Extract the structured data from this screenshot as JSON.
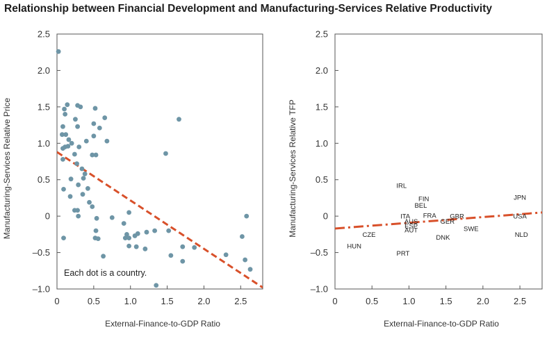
{
  "title": "Relationship between Financial Development and Manufacturing-Services Relative Productivity",
  "colors": {
    "dot": "#6e95a6",
    "trend": "#d8502a",
    "frame": "#555555"
  },
  "chart_data": [
    {
      "type": "scatter",
      "xlabel": "External-Finance-to-GDP Ratio",
      "ylabel": "Manufacturing-Services Relative Price",
      "xlim": [
        0,
        2.8
      ],
      "ylim": [
        -1.0,
        2.5
      ],
      "xticks": [
        "0",
        "0.5",
        "1.0",
        "1.5",
        "2.0",
        "2.5"
      ],
      "yticks": [
        "2.5",
        "2.0",
        "1.5",
        "1.0",
        "0.5",
        "0",
        "–0.5",
        "–1.0"
      ],
      "annotation": "Each dot is a country.",
      "trend": {
        "style": "dashed",
        "points": [
          [
            0,
            0.88
          ],
          [
            2.8,
            -0.98
          ]
        ]
      },
      "points": [
        [
          0.02,
          2.26
        ],
        [
          0.1,
          1.47
        ],
        [
          0.14,
          1.53
        ],
        [
          0.28,
          1.52
        ],
        [
          0.32,
          1.5
        ],
        [
          0.52,
          1.48
        ],
        [
          0.65,
          1.35
        ],
        [
          1.66,
          1.33
        ],
        [
          0.25,
          1.33
        ],
        [
          0.11,
          1.4
        ],
        [
          0.5,
          1.27
        ],
        [
          0.58,
          1.21
        ],
        [
          0.28,
          1.23
        ],
        [
          0.08,
          1.23
        ],
        [
          0.07,
          1.12
        ],
        [
          0.12,
          1.12
        ],
        [
          0.16,
          1.05
        ],
        [
          0.5,
          1.1
        ],
        [
          0.68,
          1.03
        ],
        [
          0.4,
          1.03
        ],
        [
          0.2,
          1.0
        ],
        [
          0.08,
          0.93
        ],
        [
          0.11,
          0.95
        ],
        [
          0.15,
          0.96
        ],
        [
          0.3,
          0.95
        ],
        [
          0.24,
          0.85
        ],
        [
          0.48,
          0.84
        ],
        [
          0.53,
          0.84
        ],
        [
          1.48,
          0.86
        ],
        [
          0.08,
          0.78
        ],
        [
          0.27,
          0.72
        ],
        [
          0.34,
          0.65
        ],
        [
          0.38,
          0.58
        ],
        [
          0.36,
          0.52
        ],
        [
          0.19,
          0.51
        ],
        [
          0.29,
          0.43
        ],
        [
          0.09,
          0.37
        ],
        [
          0.42,
          0.38
        ],
        [
          0.35,
          0.3
        ],
        [
          0.18,
          0.27
        ],
        [
          0.44,
          0.19
        ],
        [
          0.48,
          0.13
        ],
        [
          0.24,
          0.08
        ],
        [
          0.28,
          0.08
        ],
        [
          0.29,
          0.0
        ],
        [
          0.54,
          -0.03
        ],
        [
          0.75,
          -0.02
        ],
        [
          0.98,
          0.05
        ],
        [
          2.58,
          0.0
        ],
        [
          0.09,
          -0.3
        ],
        [
          0.53,
          -0.2
        ],
        [
          0.52,
          -0.3
        ],
        [
          0.56,
          -0.31
        ],
        [
          0.91,
          -0.1
        ],
        [
          0.95,
          -0.25
        ],
        [
          0.93,
          -0.3
        ],
        [
          0.98,
          -0.3
        ],
        [
          1.06,
          -0.27
        ],
        [
          1.1,
          -0.24
        ],
        [
          1.22,
          -0.22
        ],
        [
          1.33,
          -0.2
        ],
        [
          1.52,
          -0.2
        ],
        [
          0.98,
          -0.41
        ],
        [
          1.08,
          -0.42
        ],
        [
          1.2,
          -0.45
        ],
        [
          1.71,
          -0.42
        ],
        [
          1.87,
          -0.43
        ],
        [
          2.52,
          -0.28
        ],
        [
          0.63,
          -0.55
        ],
        [
          1.55,
          -0.54
        ],
        [
          2.3,
          -0.53
        ],
        [
          2.56,
          -0.6
        ],
        [
          1.71,
          -0.62
        ],
        [
          2.63,
          -0.73
        ],
        [
          1.35,
          -0.95
        ]
      ]
    },
    {
      "type": "scatter",
      "xlabel": "External-Finance-to-GDP Ratio",
      "ylabel": "Manufacturing-Services Relative TFP",
      "xlim": [
        0,
        2.8
      ],
      "ylim": [
        -1.0,
        2.5
      ],
      "xticks": [
        "0",
        "0.5",
        "1.0",
        "1.5",
        "2.0",
        "2.5"
      ],
      "yticks": [
        "2.5",
        "2.0",
        "1.5",
        "1.0",
        "0.5",
        "0",
        "–0.5",
        "–1.0"
      ],
      "trend": {
        "style": "dash-dot",
        "points": [
          [
            0,
            -0.17
          ],
          [
            2.8,
            0.05
          ]
        ]
      },
      "labels": [
        {
          "text": "IRL",
          "x": 0.9,
          "y": 0.42
        },
        {
          "text": "FIN",
          "x": 1.2,
          "y": 0.24
        },
        {
          "text": "BEL",
          "x": 1.16,
          "y": 0.15
        },
        {
          "text": "JPN",
          "x": 2.5,
          "y": 0.26
        },
        {
          "text": "ITA",
          "x": 0.95,
          "y": 0.0
        },
        {
          "text": "FRA",
          "x": 1.28,
          "y": 0.01
        },
        {
          "text": "GBR",
          "x": 1.65,
          "y": 0.0
        },
        {
          "text": "USA",
          "x": 2.5,
          "y": 0.0
        },
        {
          "text": "AUS",
          "x": 1.03,
          "y": -0.07
        },
        {
          "text": "GER",
          "x": 1.52,
          "y": -0.07
        },
        {
          "text": "ESP",
          "x": 1.03,
          "y": -0.13
        },
        {
          "text": "AUT",
          "x": 1.03,
          "y": -0.19
        },
        {
          "text": "SWE",
          "x": 1.84,
          "y": -0.17
        },
        {
          "text": "CZE",
          "x": 0.46,
          "y": -0.25
        },
        {
          "text": "NLD",
          "x": 2.52,
          "y": -0.25
        },
        {
          "text": "DNK",
          "x": 1.46,
          "y": -0.29
        },
        {
          "text": "HUN",
          "x": 0.26,
          "y": -0.41
        },
        {
          "text": "PRT",
          "x": 0.92,
          "y": -0.51
        }
      ]
    }
  ]
}
